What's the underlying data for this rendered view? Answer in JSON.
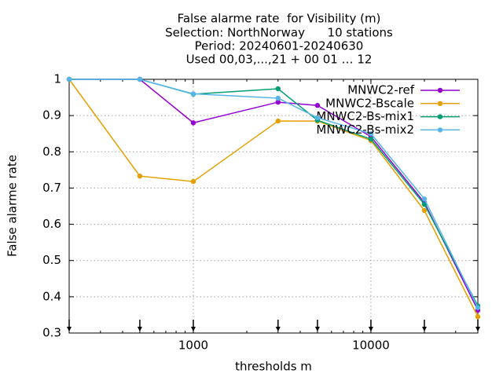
{
  "chart_data": {
    "type": "line",
    "title": [
      "False alarme rate  for Visibility (m)",
      "Selection: NorthNorway      10 stations",
      "Period: 20240601-20240630",
      "Used 00,03,...,21 + 00 01 … 12"
    ],
    "x_label": "thresholds m",
    "y_label": "False alarme rate",
    "x": [
      200,
      500,
      1000,
      3000,
      5000,
      10000,
      20000,
      40000
    ],
    "series": [
      {
        "name": "MNWC2-ref",
        "color": "#9400d3",
        "values": [
          1,
          1,
          0.88,
          0.937,
          0.928,
          0.842,
          0.66,
          0.363
        ]
      },
      {
        "name": "MNWC2-Bscale",
        "color": "#e69f00",
        "values": [
          1,
          0.733,
          0.718,
          0.885,
          0.885,
          0.831,
          0.638,
          0.345
        ]
      },
      {
        "name": "MNWC2-Bs-mix1",
        "color": "#009e73",
        "values": [
          1,
          1,
          0.959,
          0.974,
          0.887,
          0.835,
          0.655,
          0.375
        ]
      },
      {
        "name": "MNWC2-Bs-mix2",
        "color": "#56b4e9",
        "values": [
          1,
          1,
          0.96,
          0.948,
          0.894,
          0.85,
          0.67,
          0.37
        ]
      }
    ],
    "xlog": true,
    "xlim": [
      200,
      40000
    ],
    "xticks": [
      1000,
      10000
    ],
    "ylim": [
      0.3,
      1
    ],
    "yticks": [
      0.3,
      0.4,
      0.5,
      0.6,
      0.7,
      0.8,
      0.9,
      1
    ],
    "grid": true,
    "legend": "top-right"
  }
}
